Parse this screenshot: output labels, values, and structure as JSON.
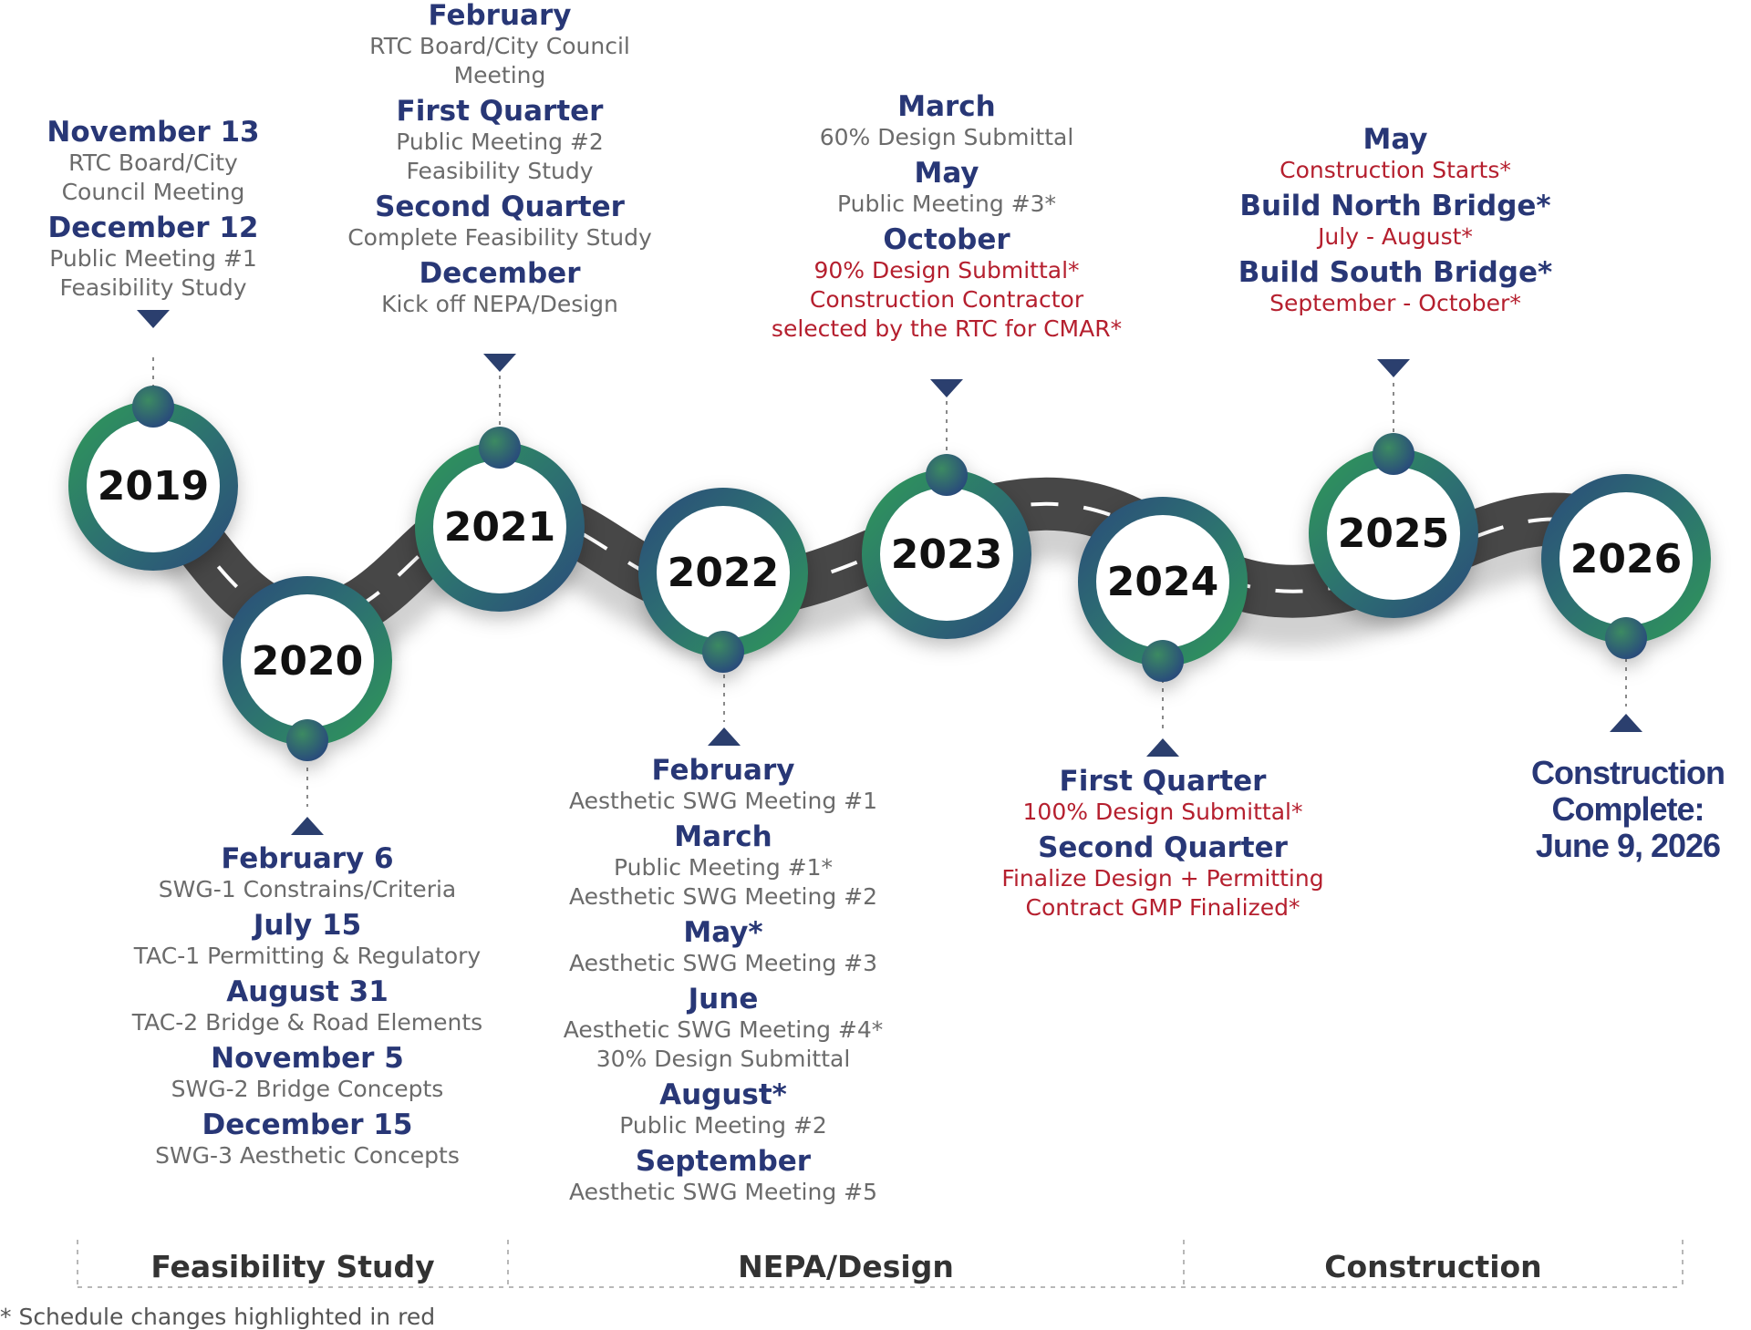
{
  "years": [
    "2019",
    "2020",
    "2021",
    "2022",
    "2023",
    "2024",
    "2025",
    "2026"
  ],
  "milestones": {
    "y2019": [
      {
        "heading": "November 13",
        "details": [
          "RTC Board/City",
          "Council Meeting"
        ]
      },
      {
        "heading": "December 12",
        "details": [
          "Public Meeting #1",
          "Feasibility Study"
        ]
      }
    ],
    "y2020": [
      {
        "heading": "February 6",
        "details": [
          "SWG-1 Constrains/Criteria"
        ]
      },
      {
        "heading": "July 15",
        "details": [
          "TAC-1 Permitting & Regulatory"
        ]
      },
      {
        "heading": "August 31",
        "details": [
          "TAC-2 Bridge & Road Elements"
        ]
      },
      {
        "heading": "November 5",
        "details": [
          "SWG-2 Bridge Concepts"
        ]
      },
      {
        "heading": "December 15",
        "details": [
          "SWG-3 Aesthetic Concepts"
        ]
      }
    ],
    "y2021": [
      {
        "heading": "February",
        "details": [
          "RTC Board/City Council",
          "Meeting"
        ]
      },
      {
        "heading": "First Quarter",
        "details": [
          "Public Meeting #2",
          "Feasibility Study"
        ]
      },
      {
        "heading": "Second Quarter",
        "details": [
          "Complete Feasibility Study"
        ]
      },
      {
        "heading": "December",
        "details": [
          "Kick off NEPA/Design"
        ]
      }
    ],
    "y2022": [
      {
        "heading": "February",
        "details": [
          "Aesthetic SWG Meeting #1"
        ]
      },
      {
        "heading": "March",
        "details": [
          "Public Meeting #1*",
          "Aesthetic SWG Meeting #2"
        ]
      },
      {
        "heading": "May*",
        "details": [
          "Aesthetic SWG Meeting #3"
        ]
      },
      {
        "heading": "June",
        "details": [
          "Aesthetic SWG Meeting #4*",
          "30% Design Submittal"
        ]
      },
      {
        "heading": "August*",
        "details": [
          "Public Meeting #2"
        ]
      },
      {
        "heading": "September",
        "details": [
          "Aesthetic SWG Meeting #5"
        ]
      }
    ],
    "y2023": [
      {
        "heading": "March",
        "details": [
          "60% Design Submittal"
        ]
      },
      {
        "heading": "May",
        "details": [
          "Public Meeting #3*"
        ]
      },
      {
        "heading": "October",
        "details": [
          "90% Design Submittal*",
          "Construction Contractor",
          "selected by the RTC for CMAR*"
        ],
        "red": true
      }
    ],
    "y2024": [
      {
        "heading": "First Quarter",
        "details": [
          "100% Design Submittal*"
        ],
        "red": true
      },
      {
        "heading": "Second Quarter",
        "details": [
          "Finalize Design + Permitting",
          "Contract GMP Finalized*"
        ],
        "red": true
      }
    ],
    "y2025": [
      {
        "heading": "May",
        "details": [
          "Construction Starts*"
        ],
        "red": true
      },
      {
        "heading": "Build North Bridge*",
        "details": [
          "July - August*"
        ],
        "red": true
      },
      {
        "heading": "Build South Bridge*",
        "details": [
          "September - October*"
        ],
        "red": true
      }
    ],
    "y2026_lines": [
      "Construction",
      "Complete:",
      "June 9, 2026"
    ]
  },
  "phases": [
    "Feasibility Study",
    "NEPA/Design",
    "Construction"
  ],
  "footnote": "* Schedule changes highlighted in red",
  "colors": {
    "heading": "#283776",
    "detail": "#6b6b6b",
    "red": "#b51f2e",
    "ring_green": "#2e9a58",
    "ring_blue": "#2a4a7a",
    "road": "#4a4a4a"
  }
}
